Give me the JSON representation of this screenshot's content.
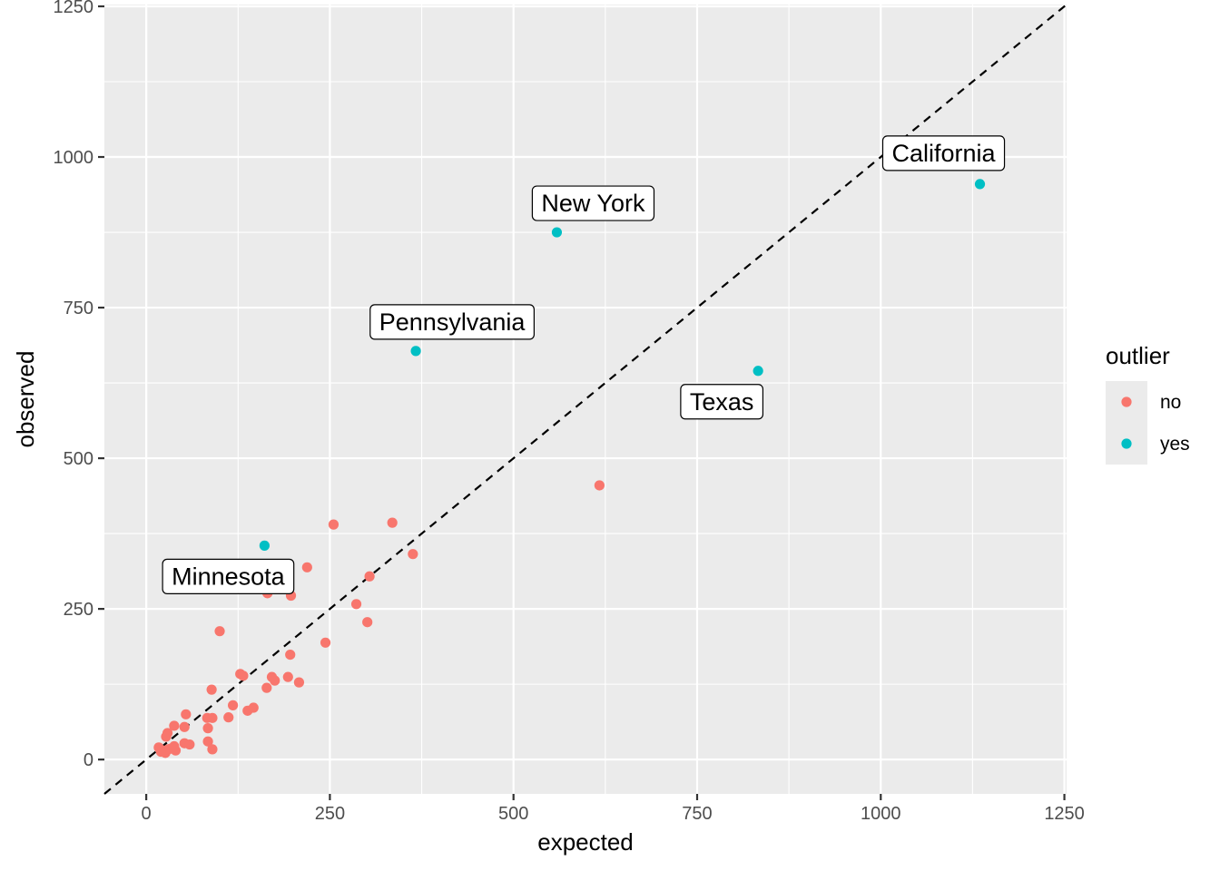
{
  "chart_data": {
    "type": "scatter",
    "xlabel": "expected",
    "ylabel": "observed",
    "xlim": [
      -57,
      1253
    ],
    "ylim": [
      -57,
      1253
    ],
    "x_ticks": [
      0,
      250,
      500,
      750,
      1000,
      1250
    ],
    "y_ticks": [
      0,
      250,
      500,
      750,
      1000,
      1250
    ],
    "x_tick_labels": [
      "0",
      "250",
      "500",
      "750",
      "1000",
      "1250"
    ],
    "y_tick_labels": [
      "0",
      "250",
      "500",
      "750",
      "1000",
      "1250"
    ],
    "grid": true,
    "panel_background": "#ebebeb",
    "reference_line": {
      "type": "identity",
      "intercept": 0,
      "slope": 1,
      "style": "dashed",
      "color": "#000000"
    },
    "legend": {
      "title": "outlier",
      "position": "right",
      "entries": [
        {
          "label": "no",
          "color": "#F8766D"
        },
        {
          "label": "yes",
          "color": "#00BFC4"
        }
      ]
    },
    "series": [
      {
        "name": "no",
        "color": "#F8766D",
        "points": [
          [
            617,
            455
          ],
          [
            335,
            393
          ],
          [
            255,
            390
          ],
          [
            363,
            341
          ],
          [
            219,
            319
          ],
          [
            304,
            304
          ],
          [
            165,
            276
          ],
          [
            197,
            272
          ],
          [
            286,
            258
          ],
          [
            301,
            228
          ],
          [
            100,
            213
          ],
          [
            244,
            194
          ],
          [
            196,
            174
          ],
          [
            128,
            142
          ],
          [
            132,
            139
          ],
          [
            171,
            137
          ],
          [
            193,
            137
          ],
          [
            175,
            131
          ],
          [
            208,
            128
          ],
          [
            164,
            119
          ],
          [
            89,
            116
          ],
          [
            146,
            86
          ],
          [
            138,
            81
          ],
          [
            118,
            90
          ],
          [
            112,
            70
          ],
          [
            83,
            69
          ],
          [
            90,
            69
          ],
          [
            54,
            75
          ],
          [
            84,
            52
          ],
          [
            52,
            54
          ],
          [
            38,
            56
          ],
          [
            29,
            44
          ],
          [
            27,
            38
          ],
          [
            84,
            30
          ],
          [
            52,
            27
          ],
          [
            59,
            25
          ],
          [
            90,
            17
          ],
          [
            40,
            15
          ],
          [
            17,
            20
          ],
          [
            23,
            15
          ],
          [
            30,
            17
          ],
          [
            26,
            11
          ],
          [
            20,
            13
          ],
          [
            33,
            18
          ],
          [
            38,
            22
          ]
        ]
      },
      {
        "name": "yes",
        "color": "#00BFC4",
        "points": [
          [
            1135,
            955
          ],
          [
            559,
            875
          ],
          [
            367,
            678
          ],
          [
            833,
            645
          ],
          [
            161,
            355
          ]
        ]
      }
    ],
    "annotations": [
      {
        "text": "California",
        "x": 1135,
        "y": 955
      },
      {
        "text": "New York",
        "x": 559,
        "y": 875
      },
      {
        "text": "Pennsylvania",
        "x": 367,
        "y": 678
      },
      {
        "text": "Texas",
        "x": 833,
        "y": 645
      },
      {
        "text": "Minnesota",
        "x": 161,
        "y": 355
      }
    ]
  }
}
